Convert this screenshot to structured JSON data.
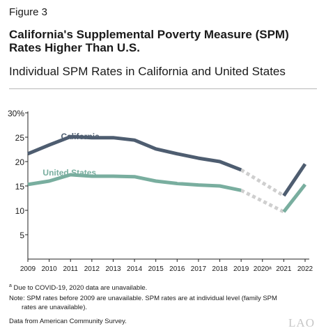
{
  "header": {
    "figure_label": "Figure 3",
    "title": "California's Supplemental Poverty Measure (SPM) Rates Higher Than U.S.",
    "subtitle": "Individual SPM Rates in California and United States"
  },
  "chart_data": {
    "type": "line",
    "x": [
      "2009",
      "2010",
      "2011",
      "2012",
      "2013",
      "2014",
      "2015",
      "2016",
      "2017",
      "2018",
      "2019",
      "2020",
      "2021",
      "2022"
    ],
    "x_tick_labels": [
      "2009",
      "2010",
      "2011",
      "2012",
      "2013",
      "2014",
      "2015",
      "2016",
      "2017",
      "2018",
      "2019",
      "2020ᵃ",
      "2021",
      "2022"
    ],
    "y_ticks": [
      "30%",
      "25",
      "20",
      "15",
      "10",
      "5"
    ],
    "y_tick_values": [
      30,
      25,
      20,
      15,
      10,
      5
    ],
    "ylim": [
      0,
      30
    ],
    "grid": false,
    "series": [
      {
        "name": "California",
        "color": "#4e5d70",
        "values": [
          21.6,
          23.4,
          25.1,
          24.9,
          24.9,
          24.4,
          22.6,
          21.6,
          20.7,
          20.0,
          18.3,
          null,
          13.0,
          19.5
        ]
      },
      {
        "name": "United States",
        "color": "#79ae9f",
        "values": [
          15.3,
          16.0,
          17.3,
          17.0,
          17.0,
          16.9,
          16.0,
          15.5,
          15.2,
          15.0,
          14.1,
          null,
          9.7,
          15.3
        ]
      }
    ],
    "gap_color": "#cfcfcf",
    "missing_year": "2020"
  },
  "notes": {
    "footnote_mark": "a",
    "footnote": " Due to COVID-19, 2020 data are unavailable.",
    "note_line1": "Note: SPM rates before 2009 are unavailable. SPM rates are at individual level (family SPM",
    "note_line2": "rates are unavailable).",
    "source": "Data from American Community Survey."
  },
  "logo_text": "LAO"
}
